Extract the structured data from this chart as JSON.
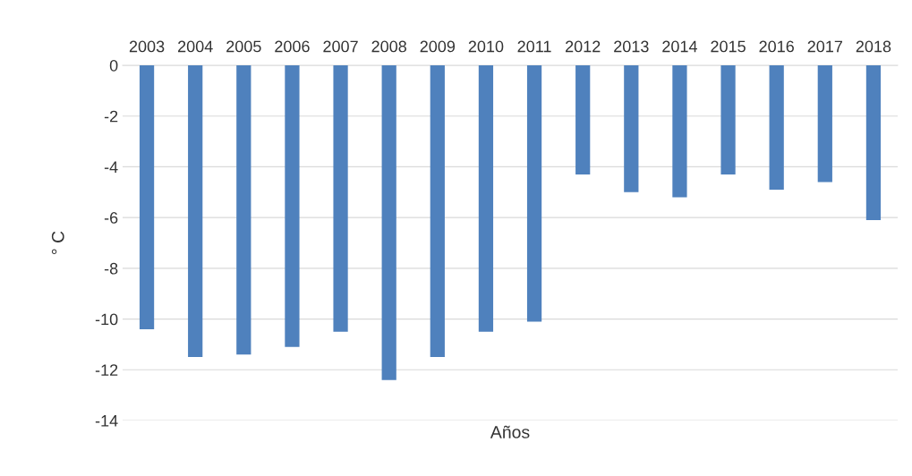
{
  "chart_data": {
    "type": "bar",
    "xlabel": "Años",
    "ylabel": "° C",
    "categories": [
      "2003",
      "2004",
      "2005",
      "2006",
      "2007",
      "2008",
      "2009",
      "2010",
      "2011",
      "2012",
      "2013",
      "2014",
      "2015",
      "2016",
      "2017",
      "2018"
    ],
    "values": [
      -10.4,
      -11.5,
      -11.4,
      -11.1,
      -10.5,
      -12.4,
      -11.5,
      -10.5,
      -10.1,
      -4.3,
      -5.0,
      -5.2,
      -4.3,
      -4.9,
      -4.6,
      -6.1
    ],
    "color": "#4f81bd",
    "ylim": [
      -14,
      0
    ],
    "yticks": [
      -14,
      -12,
      -10,
      -8,
      -6,
      -4,
      -2,
      0
    ],
    "grid": "y",
    "legend": false
  }
}
